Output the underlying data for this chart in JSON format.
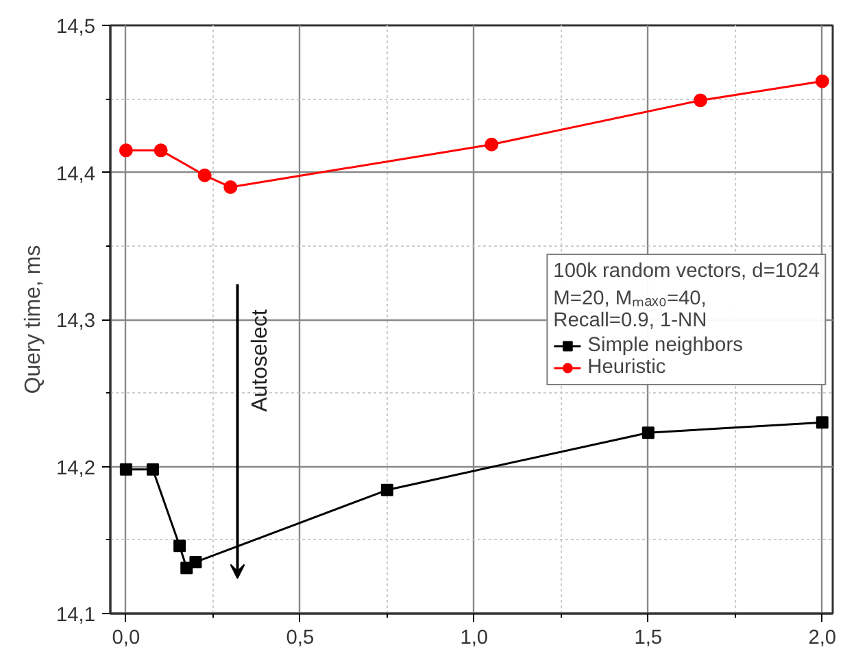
{
  "chart_data": {
    "type": "line",
    "ylabel": "Query time, ms",
    "legend_title": "100k random vectors, d=1024\nM=20, Mₘₐₓ₀=40,\nRecall=0.9, 1-NN",
    "series": [
      {
        "name": "Simple neighbors",
        "color": "#000000",
        "marker": "square",
        "x": [
          0,
          0.077,
          0.154,
          0.174,
          0.2,
          0.75,
          1.5,
          2.0
        ],
        "values": [
          14.198,
          14.198,
          14.146,
          14.131,
          14.135,
          14.184,
          14.223,
          14.23
        ]
      },
      {
        "name": "Heuristic",
        "color": "#ff0000",
        "marker": "circle",
        "x": [
          0,
          0.1,
          0.226,
          0.3,
          1.05,
          1.65,
          2.0
        ],
        "values": [
          14.415,
          14.415,
          14.398,
          14.39,
          14.419,
          14.449,
          14.462
        ]
      }
    ],
    "annotations": [
      "Autoselect"
    ],
    "xlim": [
      -0.045,
      2.03
    ],
    "ylim": [
      14.1,
      14.5
    ],
    "xticks": [
      {
        "value": 0,
        "label": "0,0"
      },
      {
        "value": 0.25,
        "label": null
      },
      {
        "value": 0.5,
        "label": "0,5"
      },
      {
        "value": 0.75,
        "label": null
      },
      {
        "value": 1.0,
        "label": "1,0"
      },
      {
        "value": 1.25,
        "label": null
      },
      {
        "value": 1.5,
        "label": "1,5"
      },
      {
        "value": 1.75,
        "label": null
      },
      {
        "value": 2.0,
        "label": "2,0"
      }
    ],
    "yticks": [
      {
        "value": 14.1,
        "label": "14,1"
      },
      {
        "value": 14.15,
        "label": null
      },
      {
        "value": 14.2,
        "label": "14,2"
      },
      {
        "value": 14.25,
        "label": null
      },
      {
        "value": 14.3,
        "label": "14,3"
      },
      {
        "value": 14.35,
        "label": null
      },
      {
        "value": 14.4,
        "label": "14,4"
      },
      {
        "value": 14.45,
        "label": null
      },
      {
        "value": 14.5,
        "label": "14,5"
      }
    ],
    "grid": true,
    "legend": "right",
    "line_style": "solid"
  }
}
